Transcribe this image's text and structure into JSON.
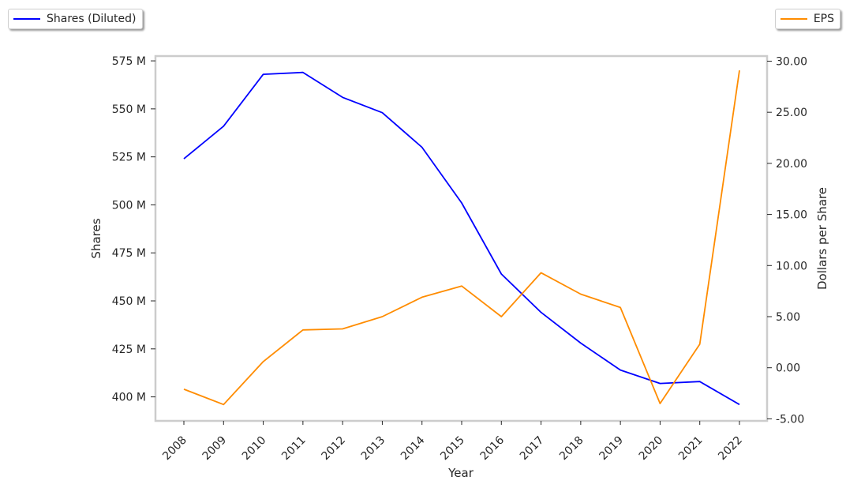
{
  "chart_data": {
    "type": "line",
    "xlabel": "Year",
    "ylabel_left": "Shares",
    "ylabel_right": "Dollars per Share",
    "categories": [
      "2008",
      "2009",
      "2010",
      "2011",
      "2012",
      "2013",
      "2014",
      "2015",
      "2016",
      "2017",
      "2018",
      "2019",
      "2020",
      "2021",
      "2022"
    ],
    "series": [
      {
        "name": "Shares (Diluted)",
        "axis": "left",
        "color": "#0000ff",
        "unit": "M",
        "values": [
          524,
          541,
          568,
          569,
          556,
          548,
          530,
          501,
          464,
          444,
          428,
          414,
          407,
          408,
          396
        ]
      },
      {
        "name": "EPS",
        "axis": "right",
        "color": "#ff8c00",
        "values": [
          -2.1,
          -3.6,
          0.6,
          3.7,
          3.8,
          5.0,
          6.9,
          8.0,
          5.0,
          9.3,
          7.2,
          5.9,
          -3.5,
          2.3,
          29.1
        ]
      }
    ],
    "ylim_left": [
      387.5,
      577.5
    ],
    "yticks_left": [
      "400 M",
      "425 M",
      "450 M",
      "475 M",
      "500 M",
      "525 M",
      "550 M",
      "575 M"
    ],
    "ytick_values_left": [
      400,
      425,
      450,
      475,
      500,
      525,
      550,
      575
    ],
    "ylim_right": [
      -5.2,
      30.5
    ],
    "yticks_right": [
      "-5.00",
      "0.00",
      "5.00",
      "10.00",
      "15.00",
      "20.00",
      "25.00",
      "30.00"
    ],
    "ytick_values_right": [
      -5,
      0,
      5,
      10,
      15,
      20,
      25,
      30
    ],
    "grid": false,
    "legend_left": "top-left",
    "legend_right": "top-right"
  }
}
